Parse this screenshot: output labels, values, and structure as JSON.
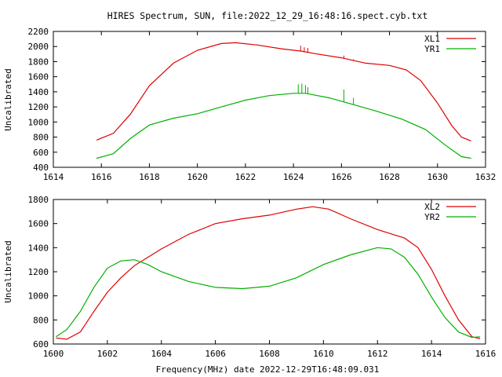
{
  "title": "HIRES Spectrum, SUN, file:2022_12_29_16:48:16.spect.cyb.txt",
  "xlabel": "Frequency(MHz) date 2022-12-29T16:48:09.031",
  "colors": {
    "series1": "#e00000",
    "series2": "#00b000"
  },
  "chart_data": [
    {
      "type": "line",
      "ylabel": "Uncalibrated",
      "xlim": [
        1614,
        1632
      ],
      "ylim": [
        400,
        2200
      ],
      "xticks": [
        "1614",
        "1616",
        "1618",
        "1620",
        "1622",
        "1624",
        "1626",
        "1628",
        "1630",
        "1632"
      ],
      "yticks": [
        "400",
        "600",
        "800",
        "1000",
        "1200",
        "1400",
        "1600",
        "1800",
        "2000",
        "2200"
      ],
      "legend_position": "top-right",
      "series": [
        {
          "name": "XL1",
          "x": [
            1615.8,
            1616.5,
            1617.2,
            1618.0,
            1619.0,
            1620.0,
            1621.0,
            1621.6,
            1622.5,
            1623.5,
            1624.3,
            1625.0,
            1626.0,
            1627.0,
            1628.0,
            1628.7,
            1629.3,
            1630.0,
            1630.6,
            1631.0,
            1631.4
          ],
          "values": [
            760,
            850,
            1100,
            1480,
            1780,
            1950,
            2040,
            2050,
            2020,
            1970,
            1940,
            1900,
            1850,
            1780,
            1750,
            1690,
            1550,
            1250,
            950,
            800,
            750
          ],
          "spikes": [
            {
              "x": 1624.3,
              "value": 2010
            },
            {
              "x": 1624.45,
              "value": 1990
            },
            {
              "x": 1624.6,
              "value": 1980
            },
            {
              "x": 1626.1,
              "value": 1880
            },
            {
              "x": 1626.5,
              "value": 1830
            }
          ]
        },
        {
          "name": "YR1",
          "x": [
            1615.8,
            1616.5,
            1617.2,
            1618.0,
            1619.0,
            1620.0,
            1621.0,
            1622.0,
            1623.0,
            1624.0,
            1624.5,
            1625.5,
            1626.5,
            1627.5,
            1628.5,
            1629.5,
            1630.3,
            1631.0,
            1631.4
          ],
          "values": [
            520,
            580,
            780,
            960,
            1050,
            1110,
            1200,
            1290,
            1350,
            1380,
            1380,
            1320,
            1230,
            1140,
            1040,
            900,
            700,
            540,
            520
          ],
          "spikes": [
            {
              "x": 1624.2,
              "value": 1500
            },
            {
              "x": 1624.35,
              "value": 1510
            },
            {
              "x": 1624.5,
              "value": 1490
            },
            {
              "x": 1624.6,
              "value": 1460
            },
            {
              "x": 1626.1,
              "value": 1430
            },
            {
              "x": 1626.5,
              "value": 1320
            }
          ]
        }
      ]
    },
    {
      "type": "line",
      "ylabel": "Uncalibrated",
      "xlim": [
        1600,
        1616
      ],
      "ylim": [
        600,
        1800
      ],
      "xticks": [
        "1600",
        "1602",
        "1604",
        "1606",
        "1608",
        "1610",
        "1612",
        "1614",
        "1616"
      ],
      "yticks": [
        "600",
        "800",
        "1000",
        "1200",
        "1400",
        "1600",
        "1800"
      ],
      "legend_position": "top-right",
      "series": [
        {
          "name": "XL2",
          "x": [
            1600.1,
            1600.5,
            1601.0,
            1601.5,
            1602.0,
            1602.5,
            1603.0,
            1603.5,
            1604.0,
            1605.0,
            1606.0,
            1607.0,
            1608.0,
            1609.0,
            1609.6,
            1610.2,
            1611.0,
            1612.0,
            1613.0,
            1613.5,
            1614.0,
            1614.5,
            1615.0,
            1615.5,
            1615.8
          ],
          "values": [
            650,
            640,
            700,
            870,
            1030,
            1150,
            1250,
            1320,
            1390,
            1510,
            1600,
            1640,
            1670,
            1720,
            1740,
            1720,
            1640,
            1550,
            1480,
            1400,
            1220,
            1000,
            800,
            660,
            645
          ],
          "spikes": []
        },
        {
          "name": "YR2",
          "x": [
            1600.1,
            1600.5,
            1601.0,
            1601.5,
            1602.0,
            1602.5,
            1603.0,
            1603.5,
            1604.0,
            1605.0,
            1606.0,
            1607.0,
            1608.0,
            1609.0,
            1610.0,
            1611.0,
            1612.0,
            1612.5,
            1613.0,
            1613.5,
            1614.0,
            1614.5,
            1615.0,
            1615.5,
            1615.8
          ],
          "values": [
            660,
            720,
            870,
            1070,
            1230,
            1290,
            1300,
            1260,
            1200,
            1120,
            1070,
            1060,
            1080,
            1150,
            1260,
            1340,
            1400,
            1390,
            1320,
            1180,
            990,
            820,
            700,
            655,
            660
          ],
          "spikes": []
        }
      ]
    }
  ]
}
